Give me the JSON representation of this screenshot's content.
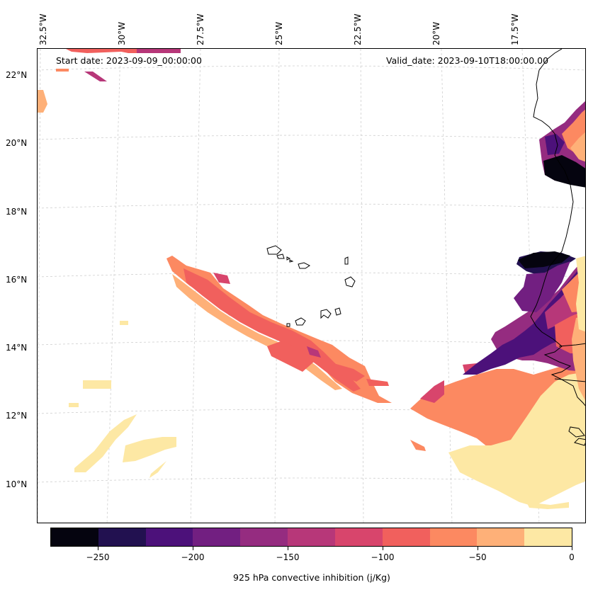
{
  "map": {
    "start_date": "Start date: 2023-09-09_00:00:00",
    "valid_date": "Valid_date: 2023-09-10T18:00:00.00",
    "lon_labels": [
      "32.5°W",
      "30°W",
      "27.5°W",
      "25°W",
      "22.5°W",
      "20°W",
      "17.5°W"
    ],
    "lat_labels": [
      "22°N",
      "20°N",
      "18°N",
      "16°N",
      "14°N",
      "12°N",
      "10°N"
    ],
    "field": "925 hPa convective inhibition",
    "units": "j/Kg"
  },
  "colorbar": {
    "label": "925 hPa convective inhibition (j/Kg)",
    "ticks": [
      "−250",
      "−200",
      "−150",
      "−100",
      "−50",
      "0"
    ],
    "tick_values": [
      -250,
      -200,
      -150,
      -100,
      -50,
      0
    ],
    "range": [
      -275,
      0
    ],
    "colors": [
      "#05040f",
      "#221150",
      "#4c117a",
      "#721f81",
      "#952c80",
      "#b73779",
      "#d8456c",
      "#f1605d",
      "#fc8961",
      "#feb078",
      "#fde8a4"
    ]
  }
}
